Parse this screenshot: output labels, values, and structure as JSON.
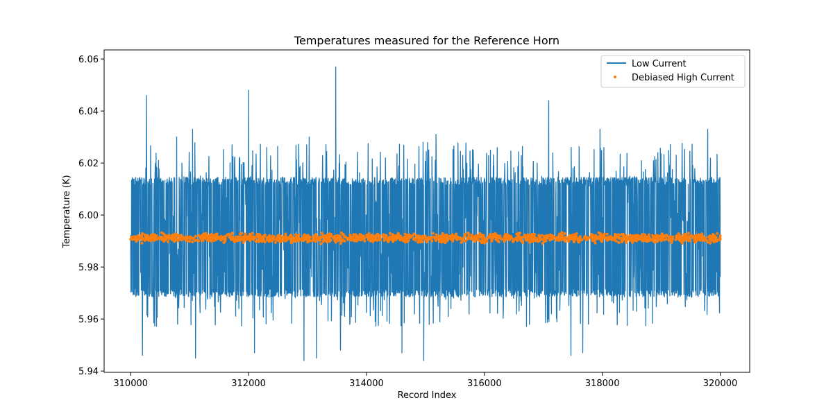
{
  "chart_data": {
    "type": "line",
    "title": "Temperatures measured for the Reference Horn",
    "xlabel": "Record Index",
    "ylabel": "Temperature (K)",
    "xlim": [
      309550,
      320500
    ],
    "ylim": [
      5.9395,
      6.0635
    ],
    "xticks": [
      310000,
      312000,
      314000,
      316000,
      318000,
      320000
    ],
    "xtick_labels": [
      "310000",
      "312000",
      "314000",
      "316000",
      "318000",
      "320000"
    ],
    "yticks": [
      5.94,
      5.96,
      5.98,
      6.0,
      6.02,
      6.04,
      6.06
    ],
    "ytick_labels": [
      "5.94",
      "5.96",
      "5.98",
      "6.00",
      "6.02",
      "6.04",
      "6.06"
    ],
    "grid": false,
    "legend_position": "top-right",
    "series": [
      {
        "name": "Low Current",
        "kind": "line",
        "color": "#1f77b4",
        "x_range": [
          310000,
          320000
        ],
        "n_points": 10001,
        "dominant_levels": [
          5.97,
          5.978,
          5.985,
          5.992,
          5.999,
          6.006,
          6.013
        ],
        "typical_max": 6.016,
        "typical_min": 5.969,
        "peaks": [
          {
            "x": 310270,
            "y": 6.046
          },
          {
            "x": 310780,
            "y": 6.03
          },
          {
            "x": 311050,
            "y": 6.033
          },
          {
            "x": 311720,
            "y": 6.027
          },
          {
            "x": 312000,
            "y": 6.048
          },
          {
            "x": 313030,
            "y": 6.03
          },
          {
            "x": 313480,
            "y": 6.057
          },
          {
            "x": 314960,
            "y": 6.028
          },
          {
            "x": 315180,
            "y": 6.031
          },
          {
            "x": 317090,
            "y": 6.044
          },
          {
            "x": 317960,
            "y": 6.033
          },
          {
            "x": 319790,
            "y": 6.033
          }
        ],
        "dips": [
          {
            "x": 310200,
            "y": 5.946
          },
          {
            "x": 311100,
            "y": 5.945
          },
          {
            "x": 312100,
            "y": 5.947
          },
          {
            "x": 312940,
            "y": 5.944
          },
          {
            "x": 313150,
            "y": 5.945
          },
          {
            "x": 313560,
            "y": 5.948
          },
          {
            "x": 314600,
            "y": 5.947
          },
          {
            "x": 314970,
            "y": 5.944
          },
          {
            "x": 317470,
            "y": 5.946
          },
          {
            "x": 317670,
            "y": 5.947
          }
        ]
      },
      {
        "name": "Debiased High Current",
        "kind": "scatter",
        "color": "#ff7f0e",
        "x_range": [
          310000,
          320000
        ],
        "center": 5.9912,
        "spread": 0.0013,
        "min": 5.986,
        "max": 5.994
      }
    ]
  }
}
